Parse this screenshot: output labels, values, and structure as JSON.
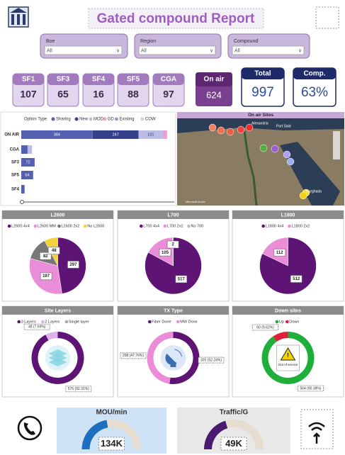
{
  "header": {
    "title": "Gated compound Report"
  },
  "filters": [
    {
      "label": "Boe",
      "value": "All"
    },
    {
      "label": "Region",
      "value": "All"
    },
    {
      "label": "Compound",
      "value": "All"
    }
  ],
  "cards": [
    {
      "label": "SF1",
      "value": 107
    },
    {
      "label": "SF3",
      "value": 65
    },
    {
      "label": "SF4",
      "value": 16
    },
    {
      "label": "SF5",
      "value": 88
    },
    {
      "label": "CGA",
      "value": 97
    }
  ],
  "on_air": {
    "label": "On air",
    "value": 624
  },
  "total": {
    "label": "Total",
    "value": 997
  },
  "comp": {
    "label": "Comp.",
    "value": 63,
    "value_label": "63%"
  },
  "map": {
    "title": "On air Sites",
    "labels": [
      "Alexandria",
      "Port Said",
      "Hurghada",
      "Microsoft Azure"
    ]
  },
  "chart_data": [
    {
      "type": "hbar",
      "legend_title": "Option Type",
      "categories": [
        "ON AIR",
        "CGA",
        "SF3",
        "SF5",
        "SF4"
      ],
      "xlim": [
        0,
        800
      ],
      "series": [
        {
          "name": "Sharing",
          "color": "#5560b0",
          "values": [
            384,
            34,
            72,
            64,
            18
          ]
        },
        {
          "name": "New",
          "color": "#34418a",
          "values": [
            247,
            null,
            null,
            null,
            null
          ]
        },
        {
          "name": "MOD",
          "color": "#b9bde8",
          "values": [
            131,
            24,
            null,
            null,
            null
          ]
        },
        {
          "name": "GD",
          "color": "#e8a0d8",
          "values": [
            22,
            null,
            null,
            null,
            null
          ]
        },
        {
          "name": "Existing",
          "color": "#9a9ad0",
          "values": [
            null,
            null,
            null,
            null,
            null
          ]
        },
        {
          "name": "COW",
          "color": "#d8d0f0",
          "values": [
            null,
            null,
            null,
            null,
            null
          ]
        }
      ]
    },
    {
      "type": "pie",
      "title": "L2600",
      "categories": [
        "L2600 4x4",
        "L2600 MM",
        "L2600 2x2",
        "No L2600"
      ],
      "values": [
        297,
        197,
        82,
        48
      ],
      "colors": [
        "#5e1475",
        "#ea8cd8",
        "#777777",
        "#f1d43a"
      ]
    },
    {
      "type": "pie",
      "title": "L700",
      "categories": [
        "L700 4x4",
        "L700 2x2",
        "No 700"
      ],
      "values": [
        517,
        105,
        2
      ],
      "colors": [
        "#5e1475",
        "#ea8cd8",
        "#bbbbbb"
      ]
    },
    {
      "type": "pie",
      "title": "L1800",
      "categories": [
        "L1800 4x4",
        "L1800 2x2"
      ],
      "values": [
        512,
        112
      ],
      "colors": [
        "#5e1475",
        "#ea8cd8"
      ]
    },
    {
      "type": "donut",
      "title": "Site Layers",
      "categories": [
        "3 Layers",
        "2 Layers",
        "Single layer"
      ],
      "values": [
        576,
        48,
        0
      ],
      "value_labels": [
        "576 (92.31%)",
        "48 (7.69%)",
        null
      ],
      "colors": [
        "#5e1475",
        "#e0b3e8",
        "#aaaaaa"
      ],
      "icon": "layers"
    },
    {
      "type": "donut",
      "title": "TX Type",
      "categories": [
        "Fiber Done",
        "MW Done"
      ],
      "values": [
        326,
        298
      ],
      "value_labels": [
        "326 (52.24%)",
        "298 (47.76%)"
      ],
      "colors": [
        "#5e1475",
        "#ea8cd8"
      ],
      "icon": "dish"
    },
    {
      "type": "donut",
      "title": "Down sites",
      "categories": [
        "Up",
        "Down"
      ],
      "values": [
        564,
        60
      ],
      "value_labels": [
        "564 (90.38%)",
        "60 (9.62%)"
      ],
      "colors": [
        "#1fae3a",
        "#e0203b"
      ],
      "icon": "warning",
      "annotation": "Out of service"
    },
    {
      "type": "gauge",
      "title": "MOU/min",
      "value": 134000,
      "value_label": "134K",
      "ylim": [
        0,
        300000
      ],
      "color": "#1f6fc0"
    },
    {
      "type": "gauge",
      "title": "Traffic/G",
      "value": 49000,
      "value_label": "49K",
      "ylim": [
        0,
        120000
      ],
      "color": "#4a1a70"
    }
  ]
}
